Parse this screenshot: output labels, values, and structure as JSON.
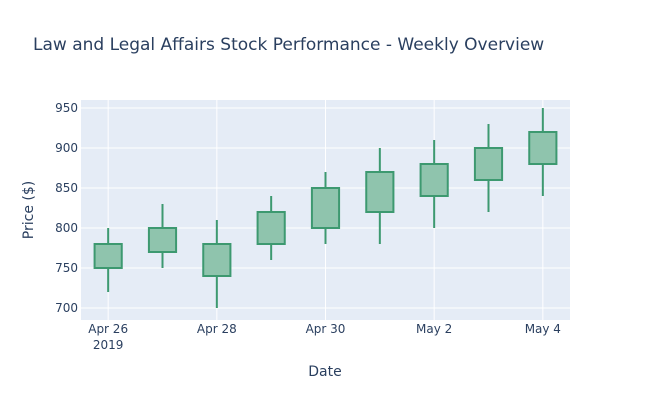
{
  "chart_data": {
    "type": "candlestick",
    "title": "Law and Legal Affairs Stock Performance - Weekly Overview",
    "xlabel": "Date",
    "ylabel": "Price ($)",
    "ylim": [
      685,
      960
    ],
    "yticks": [
      700,
      750,
      800,
      850,
      900,
      950
    ],
    "xlim": [
      "2019-04-25T12:00",
      "2019-05-04T12:00"
    ],
    "xticks": [
      {
        "date": "2019-04-26",
        "label": "Apr 26",
        "sublabel": "2019"
      },
      {
        "date": "2019-04-28",
        "label": "Apr 28",
        "sublabel": ""
      },
      {
        "date": "2019-04-30",
        "label": "Apr 30",
        "sublabel": ""
      },
      {
        "date": "2019-05-02",
        "label": "May 2",
        "sublabel": ""
      },
      {
        "date": "2019-05-04",
        "label": "May 4",
        "sublabel": ""
      }
    ],
    "grid": true,
    "legend": "none",
    "colors": {
      "increasing_line": "#3d9970",
      "increasing_fill": "#8fc4ad",
      "plot_bg": "#e5ecf6",
      "grid": "#ffffff",
      "text": "#2a3f5f"
    },
    "candles": [
      {
        "date": "2019-04-26",
        "open": 750,
        "high": 800,
        "low": 720,
        "close": 780
      },
      {
        "date": "2019-04-27",
        "open": 770,
        "high": 830,
        "low": 750,
        "close": 800
      },
      {
        "date": "2019-04-28",
        "open": 740,
        "high": 810,
        "low": 700,
        "close": 780
      },
      {
        "date": "2019-04-29",
        "open": 780,
        "high": 840,
        "low": 760,
        "close": 820
      },
      {
        "date": "2019-04-30",
        "open": 800,
        "high": 870,
        "low": 780,
        "close": 850
      },
      {
        "date": "2019-05-01",
        "open": 820,
        "high": 900,
        "low": 780,
        "close": 870
      },
      {
        "date": "2019-05-02",
        "open": 840,
        "high": 910,
        "low": 800,
        "close": 880
      },
      {
        "date": "2019-05-03",
        "open": 860,
        "high": 930,
        "low": 820,
        "close": 900
      },
      {
        "date": "2019-05-04",
        "open": 880,
        "high": 950,
        "low": 840,
        "close": 920
      }
    ]
  }
}
